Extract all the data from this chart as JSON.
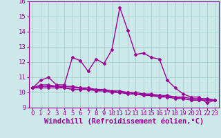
{
  "x": [
    0,
    1,
    2,
    3,
    4,
    5,
    6,
    7,
    8,
    9,
    10,
    11,
    12,
    13,
    14,
    15,
    16,
    17,
    18,
    19,
    20,
    21,
    22,
    23
  ],
  "line1": [
    10.3,
    10.8,
    11.0,
    10.5,
    10.5,
    12.3,
    12.1,
    11.4,
    12.2,
    11.9,
    12.8,
    15.6,
    14.1,
    12.5,
    12.6,
    12.3,
    12.2,
    10.8,
    10.3,
    9.9,
    9.7,
    9.7,
    9.3,
    9.5
  ],
  "line2": [
    10.3,
    10.5,
    10.5,
    10.4,
    10.4,
    10.4,
    10.3,
    10.3,
    10.2,
    10.2,
    10.1,
    10.1,
    10.0,
    10.0,
    9.9,
    9.9,
    9.8,
    9.8,
    9.7,
    9.7,
    9.6,
    9.6,
    9.6,
    9.5
  ],
  "line3": [
    10.3,
    10.4,
    10.4,
    10.4,
    10.3,
    10.3,
    10.3,
    10.2,
    10.2,
    10.1,
    10.1,
    10.0,
    10.0,
    9.9,
    9.9,
    9.8,
    9.8,
    9.7,
    9.7,
    9.6,
    9.5,
    9.5,
    9.5,
    9.5
  ],
  "line4": [
    10.3,
    10.3,
    10.3,
    10.3,
    10.3,
    10.2,
    10.2,
    10.2,
    10.1,
    10.1,
    10.0,
    10.0,
    9.9,
    9.9,
    9.8,
    9.8,
    9.7,
    9.7,
    9.6,
    9.6,
    9.5,
    9.5,
    9.5,
    9.5
  ],
  "line_color": "#990099",
  "bg_color": "#cce8e8",
  "grid_color": "#99cccc",
  "ylim": [
    9,
    16
  ],
  "yticks": [
    9,
    10,
    11,
    12,
    13,
    14,
    15,
    16
  ],
  "xlabel": "Windchill (Refroidissement éolien,°C)",
  "xlabel_fontsize": 7.5,
  "tick_fontsize": 6.5,
  "line_width": 1.0,
  "marker": "D",
  "marker_size": 2.0
}
